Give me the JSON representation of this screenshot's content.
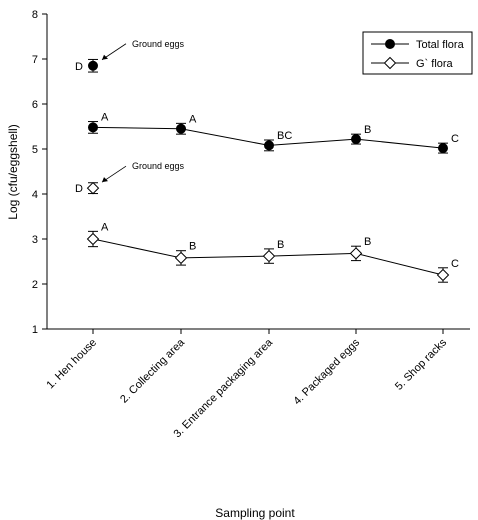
{
  "chart_data": {
    "type": "line",
    "xlabel": "Sampling point",
    "ylabel": "Log (cfu/eggshell)",
    "ylim": [
      1,
      8
    ],
    "yticks": [
      1,
      2,
      3,
      4,
      5,
      6,
      7,
      8
    ],
    "categories": [
      "1. Hen house",
      "2. Collecting area",
      "3. Entrance packaging area",
      "4. Packaged eggs",
      "5. Shop racks"
    ],
    "legend_position": "top-right",
    "series": [
      {
        "name": "Total flora",
        "marker": "filled-circle",
        "values": [
          5.48,
          5.45,
          5.08,
          5.22,
          5.02
        ],
        "errors": [
          0.13,
          0.12,
          0.12,
          0.11,
          0.11
        ],
        "labels": [
          "A",
          "A",
          "BC",
          "B",
          "C"
        ]
      },
      {
        "name": "G` flora",
        "marker": "open-diamond",
        "values": [
          3.0,
          2.58,
          2.62,
          2.68,
          2.2
        ],
        "errors": [
          0.17,
          0.16,
          0.16,
          0.16,
          0.16
        ],
        "labels": [
          "A",
          "B",
          "B",
          "B",
          "C"
        ]
      }
    ],
    "extra_points": [
      {
        "series": "Total flora",
        "category": "1. Hen house",
        "value": 6.85,
        "error": 0.14,
        "label": "D",
        "annotation": "Ground eggs"
      },
      {
        "series": "G` flora",
        "category": "1. Hen house",
        "value": 4.13,
        "error": 0.12,
        "label": "D",
        "annotation": "Ground eggs"
      }
    ]
  }
}
